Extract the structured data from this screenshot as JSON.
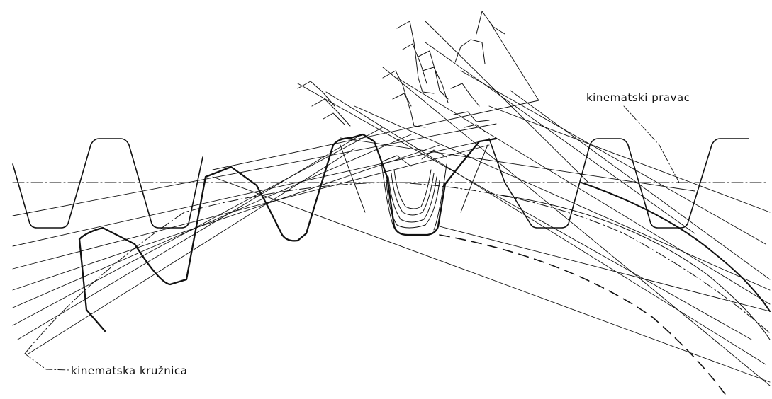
{
  "labels": {
    "pitch_line": "kinematski pravac",
    "pitch_circle": "kinematska kružnica"
  },
  "colors": {
    "ink": "#111111",
    "background": "#ffffff"
  }
}
